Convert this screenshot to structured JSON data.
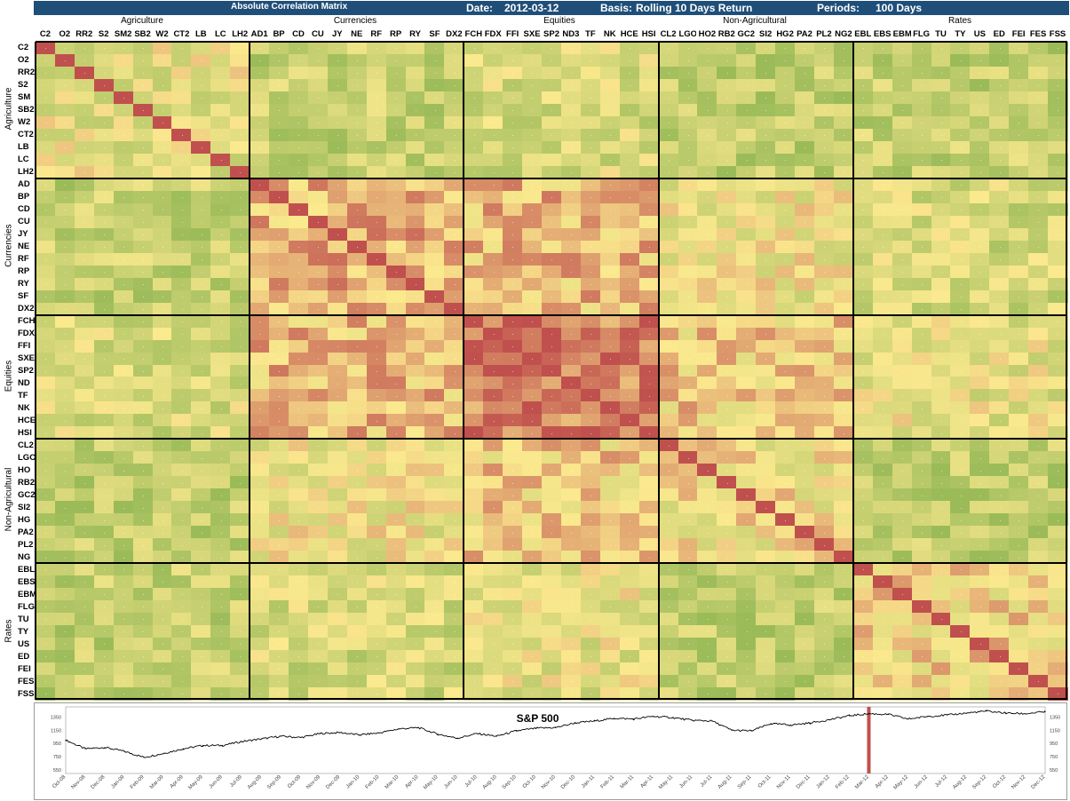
{
  "header": {
    "title": "Absolute Correlation Matrix",
    "date_label": "Date:",
    "date": "2012-03-12",
    "basis_label": "Basis:",
    "basis": "Rolling 10 Days Return",
    "periods_label": "Periods:",
    "periods": "100 Days"
  },
  "colors": {
    "banner": "#1f4e79",
    "low": "#9bbb59",
    "mid": "#fbe98e",
    "high": "#c0504d",
    "highlight_bar": "#c0504d"
  },
  "chart_data": [
    {
      "type": "heatmap",
      "title": "Absolute Correlation Matrix",
      "value_range": [
        0,
        1
      ],
      "groups": [
        {
          "name": "Agriculture",
          "tickers": [
            "C2",
            "O2",
            "RR2",
            "S2",
            "SM2",
            "SB2",
            "W2",
            "CT2",
            "LB",
            "LC",
            "LH2"
          ],
          "row_labels": [
            "C2",
            "O2",
            "RR2",
            "S2",
            "SM",
            "SB2",
            "W2",
            "CT2",
            "LB",
            "LC",
            "LH2"
          ]
        },
        {
          "name": "Currencies",
          "tickers": [
            "AD1",
            "BP",
            "CD",
            "CU",
            "JY",
            "NE",
            "RF",
            "RP",
            "RY",
            "SF",
            "DX2"
          ],
          "row_labels": [
            "AD",
            "BP",
            "CD",
            "CU",
            "JY",
            "NE",
            "RF",
            "RP",
            "RY",
            "SF",
            "DX2"
          ]
        },
        {
          "name": "Equities",
          "tickers": [
            "FCH",
            "FDX",
            "FFI",
            "SXE",
            "SP2",
            "ND3",
            "TF",
            "NK",
            "HCE",
            "HSI"
          ],
          "row_labels": [
            "FCH",
            "FDX",
            "FFI",
            "SXE",
            "SP2",
            "ND",
            "TF",
            "NK",
            "HCE",
            "HSI"
          ]
        },
        {
          "name": "Non-Agricultural",
          "tickers": [
            "CL2",
            "LGO",
            "HO2",
            "RB2",
            "GC2",
            "SI2",
            "HG2",
            "PA2",
            "PL2",
            "NG2"
          ],
          "row_labels": [
            "CL2",
            "LGO",
            "HO",
            "RB2",
            "GC2",
            "SI2",
            "HG",
            "PA2",
            "PL2",
            "NG"
          ]
        },
        {
          "name": "Rates",
          "tickers": [
            "EBL",
            "EBS",
            "EBM",
            "FLG",
            "TU",
            "TY",
            "US",
            "ED",
            "FEI",
            "FES",
            "FSS"
          ],
          "row_labels": [
            "EBL",
            "EBS",
            "EBM",
            "FLG",
            "TU",
            "TY",
            "US",
            "ED",
            "FEI",
            "FES",
            "FSS"
          ]
        }
      ],
      "blocks": [
        [
          0.4,
          0.22,
          0.32,
          0.18,
          0.22
        ],
        [
          0.22,
          0.68,
          0.65,
          0.45,
          0.3
        ],
        [
          0.32,
          0.65,
          0.85,
          0.58,
          0.4
        ],
        [
          0.18,
          0.45,
          0.58,
          0.5,
          0.18
        ],
        [
          0.22,
          0.3,
          0.4,
          0.18,
          0.55
        ]
      ]
    },
    {
      "type": "line",
      "title": "S&P 500",
      "y_ticks": [
        550,
        750,
        950,
        1150,
        1350
      ],
      "ylim": [
        550,
        1450
      ],
      "x_tick_labels": [
        "Oct-08",
        "Nov-08",
        "Dec-08",
        "Jan-09",
        "Feb-09",
        "Mar-09",
        "Apr-09",
        "May-09",
        "Jun-09",
        "Jul-09",
        "Aug-09",
        "Sep-09",
        "Oct-09",
        "Nov-09",
        "Dec-09",
        "Jan-10",
        "Feb-10",
        "Mar-10",
        "Apr-10",
        "May-10",
        "Jun-10",
        "Jul-10",
        "Aug-10",
        "Sep-10",
        "Oct-10",
        "Nov-10",
        "Dec-10",
        "Jan-11",
        "Feb-11",
        "Mar-11",
        "Apr-11",
        "May-11",
        "Jun-11",
        "Jul-11",
        "Aug-11",
        "Sep-11",
        "Oct-11",
        "Nov-11",
        "Dec-11",
        "Jan-12",
        "Feb-12",
        "Mar-12",
        "Apr-12",
        "May-12",
        "Jun-12",
        "Jul-12",
        "Aug-12",
        "Sep-12",
        "Oct-12",
        "Nov-12",
        "Dec-12"
      ],
      "x": [
        "Oct-08",
        "Nov-08",
        "Dec-08",
        "Jan-09",
        "Feb-09",
        "Mar-09",
        "Apr-09",
        "May-09",
        "Jun-09",
        "Jul-09",
        "Aug-09",
        "Sep-09",
        "Oct-09",
        "Nov-09",
        "Dec-09",
        "Jan-10",
        "Feb-10",
        "Mar-10",
        "Apr-10",
        "May-10",
        "Jun-10",
        "Jul-10",
        "Aug-10",
        "Sep-10",
        "Oct-10",
        "Nov-10",
        "Dec-10",
        "Jan-11",
        "Feb-11",
        "Mar-11",
        "Apr-11",
        "May-11",
        "Jun-11",
        "Jul-11",
        "Aug-11",
        "Sep-11",
        "Oct-11",
        "Nov-11",
        "Dec-11",
        "Jan-12",
        "Feb-12",
        "Mar-12",
        "Apr-12",
        "May-12",
        "Jun-12",
        "Jul-12",
        "Aug-12",
        "Sep-12",
        "Oct-12",
        "Nov-12",
        "Dec-12"
      ],
      "values": [
        1000,
        870,
        890,
        830,
        740,
        800,
        870,
        920,
        920,
        980,
        1020,
        1060,
        1040,
        1100,
        1115,
        1080,
        1110,
        1170,
        1190,
        1090,
        1030,
        1100,
        1060,
        1140,
        1180,
        1190,
        1260,
        1290,
        1330,
        1320,
        1360,
        1340,
        1300,
        1290,
        1150,
        1140,
        1250,
        1230,
        1260,
        1310,
        1370,
        1400,
        1390,
        1320,
        1360,
        1380,
        1410,
        1440,
        1410,
        1400,
        1430
      ],
      "highlight_x": "Mar-12"
    }
  ]
}
